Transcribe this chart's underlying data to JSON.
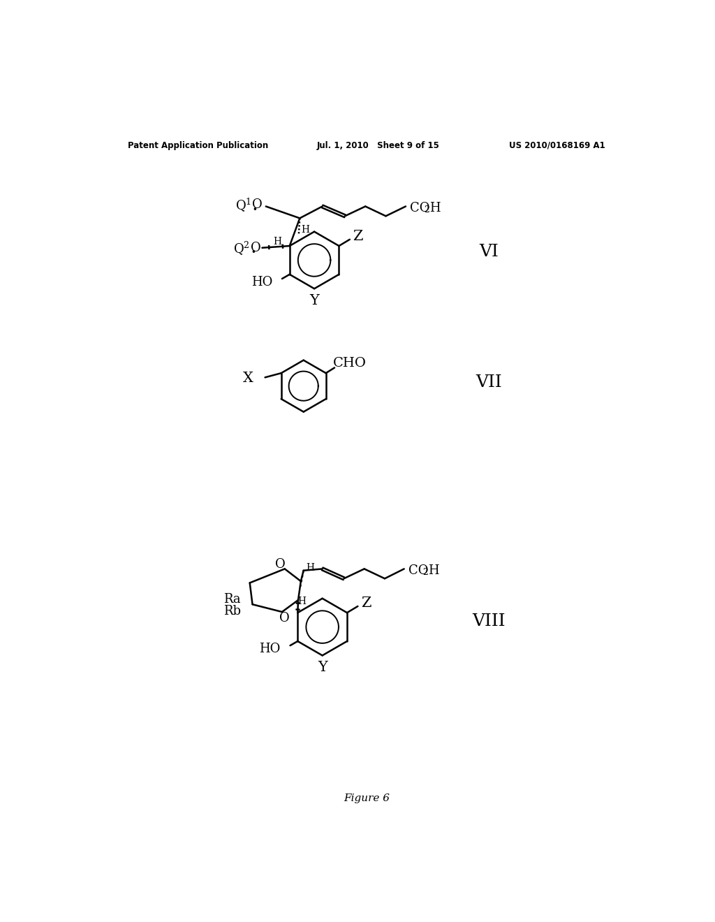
{
  "bg_color": "#ffffff",
  "header_left": "Patent Application Publication",
  "header_center": "Jul. 1, 2010   Sheet 9 of 15",
  "header_right": "US 2010/0168169 A1",
  "footer": "Figure 6"
}
